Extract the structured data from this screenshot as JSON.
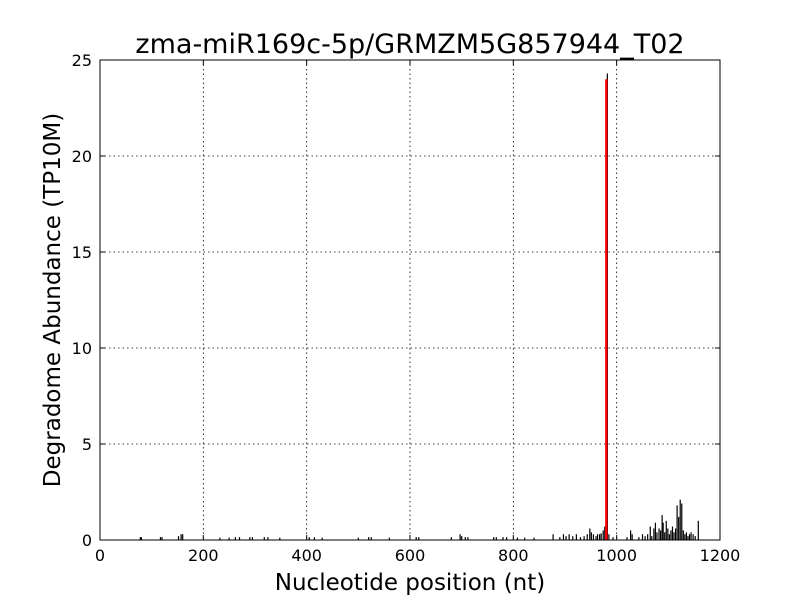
{
  "chart_data": {
    "type": "bar",
    "title": "zma-miR169c-5p/GRMZM5G857944_T02",
    "xlabel": "Nucleotide position (nt)",
    "ylabel": "Degradome Abundance (TP10M)",
    "xlim": [
      0,
      1200
    ],
    "ylim": [
      0,
      25
    ],
    "x_ticks": [
      0,
      200,
      400,
      600,
      800,
      1000,
      1200
    ],
    "y_ticks": [
      0,
      5,
      10,
      15,
      20,
      25
    ],
    "grid": true,
    "colors": {
      "bars": "#000000",
      "highlight": "#ff0000"
    },
    "highlight": {
      "x": 980,
      "value": 24.0
    },
    "bars": [
      {
        "x": 78,
        "value": 0.15
      },
      {
        "x": 80,
        "value": 0.15
      },
      {
        "x": 117,
        "value": 0.15
      },
      {
        "x": 120,
        "value": 0.15
      },
      {
        "x": 152,
        "value": 0.2
      },
      {
        "x": 157,
        "value": 0.3
      },
      {
        "x": 160,
        "value": 0.3
      },
      {
        "x": 232,
        "value": 0.12
      },
      {
        "x": 250,
        "value": 0.12
      },
      {
        "x": 262,
        "value": 0.15
      },
      {
        "x": 270,
        "value": 0.15
      },
      {
        "x": 290,
        "value": 0.15
      },
      {
        "x": 295,
        "value": 0.15
      },
      {
        "x": 318,
        "value": 0.15
      },
      {
        "x": 325,
        "value": 0.15
      },
      {
        "x": 348,
        "value": 0.12
      },
      {
        "x": 405,
        "value": 0.15
      },
      {
        "x": 415,
        "value": 0.15
      },
      {
        "x": 430,
        "value": 0.12
      },
      {
        "x": 500,
        "value": 0.12
      },
      {
        "x": 520,
        "value": 0.15
      },
      {
        "x": 525,
        "value": 0.15
      },
      {
        "x": 560,
        "value": 0.12
      },
      {
        "x": 612,
        "value": 0.15
      },
      {
        "x": 617,
        "value": 0.15
      },
      {
        "x": 680,
        "value": 0.15
      },
      {
        "x": 697,
        "value": 0.3
      },
      {
        "x": 700,
        "value": 0.2
      },
      {
        "x": 707,
        "value": 0.15
      },
      {
        "x": 712,
        "value": 0.15
      },
      {
        "x": 762,
        "value": 0.15
      },
      {
        "x": 767,
        "value": 0.15
      },
      {
        "x": 780,
        "value": 0.15
      },
      {
        "x": 787,
        "value": 0.15
      },
      {
        "x": 808,
        "value": 0.12
      },
      {
        "x": 822,
        "value": 0.12
      },
      {
        "x": 840,
        "value": 0.12
      },
      {
        "x": 877,
        "value": 0.3
      },
      {
        "x": 890,
        "value": 0.15
      },
      {
        "x": 897,
        "value": 0.3
      },
      {
        "x": 902,
        "value": 0.2
      },
      {
        "x": 908,
        "value": 0.3
      },
      {
        "x": 915,
        "value": 0.2
      },
      {
        "x": 922,
        "value": 0.3
      },
      {
        "x": 930,
        "value": 0.15
      },
      {
        "x": 937,
        "value": 0.2
      },
      {
        "x": 943,
        "value": 0.3
      },
      {
        "x": 948,
        "value": 0.6
      },
      {
        "x": 951,
        "value": 0.4
      },
      {
        "x": 955,
        "value": 0.3
      },
      {
        "x": 960,
        "value": 0.2
      },
      {
        "x": 963,
        "value": 0.3
      },
      {
        "x": 967,
        "value": 0.3
      },
      {
        "x": 970,
        "value": 0.35
      },
      {
        "x": 974,
        "value": 0.5
      },
      {
        "x": 977,
        "value": 0.7
      },
      {
        "x": 982,
        "value": 24.3
      },
      {
        "x": 985,
        "value": 0.3
      },
      {
        "x": 993,
        "value": 0.15
      },
      {
        "x": 1020,
        "value": 0.15
      },
      {
        "x": 1027,
        "value": 0.5
      },
      {
        "x": 1030,
        "value": 0.3
      },
      {
        "x": 1043,
        "value": 0.15
      },
      {
        "x": 1050,
        "value": 0.3
      },
      {
        "x": 1055,
        "value": 0.2
      },
      {
        "x": 1060,
        "value": 0.3
      },
      {
        "x": 1065,
        "value": 0.7
      },
      {
        "x": 1068,
        "value": 0.2
      },
      {
        "x": 1072,
        "value": 0.6
      },
      {
        "x": 1075,
        "value": 0.9
      },
      {
        "x": 1078,
        "value": 0.4
      },
      {
        "x": 1082,
        "value": 0.6
      },
      {
        "x": 1085,
        "value": 0.5
      },
      {
        "x": 1088,
        "value": 1.3
      },
      {
        "x": 1090,
        "value": 0.9
      },
      {
        "x": 1093,
        "value": 0.4
      },
      {
        "x": 1096,
        "value": 1.0
      },
      {
        "x": 1099,
        "value": 0.6
      },
      {
        "x": 1102,
        "value": 0.3
      },
      {
        "x": 1105,
        "value": 0.5
      },
      {
        "x": 1108,
        "value": 0.7
      },
      {
        "x": 1111,
        "value": 0.4
      },
      {
        "x": 1114,
        "value": 0.6
      },
      {
        "x": 1117,
        "value": 1.8
      },
      {
        "x": 1120,
        "value": 1.2
      },
      {
        "x": 1123,
        "value": 2.1
      },
      {
        "x": 1126,
        "value": 1.9
      },
      {
        "x": 1129,
        "value": 0.5
      },
      {
        "x": 1132,
        "value": 0.3
      },
      {
        "x": 1135,
        "value": 0.4
      },
      {
        "x": 1138,
        "value": 0.2
      },
      {
        "x": 1141,
        "value": 0.3
      },
      {
        "x": 1144,
        "value": 0.4
      },
      {
        "x": 1148,
        "value": 0.3
      },
      {
        "x": 1152,
        "value": 0.2
      },
      {
        "x": 1158,
        "value": 1.0
      }
    ]
  }
}
